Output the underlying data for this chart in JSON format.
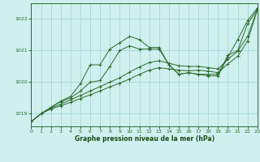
{
  "title": "Graphe pression niveau de la mer (hPa)",
  "background_color": "#cff0ee",
  "grid_color": "#aadada",
  "line_color": "#2d6a2d",
  "marker_color": "#2d6a2d",
  "xlabel_color": "#1a4a1a",
  "ylim": [
    1018.6,
    1022.5
  ],
  "xlim": [
    0,
    23
  ],
  "yticks": [
    1019,
    1020,
    1021,
    1022
  ],
  "xticks": [
    0,
    1,
    2,
    3,
    4,
    5,
    6,
    7,
    8,
    9,
    10,
    11,
    12,
    13,
    14,
    15,
    16,
    17,
    18,
    19,
    20,
    21,
    22,
    23
  ],
  "s1": [
    1018.75,
    1019.0,
    1019.2,
    1019.4,
    1019.55,
    1019.95,
    1020.55,
    1020.55,
    1021.05,
    1021.25,
    1021.45,
    1021.35,
    1021.1,
    1021.1,
    1020.55,
    1020.25,
    1020.3,
    1020.25,
    1020.2,
    1020.2,
    1020.8,
    1021.35,
    1021.95,
    1022.35
  ],
  "s2": [
    1018.75,
    1019.0,
    1019.2,
    1019.38,
    1019.5,
    1019.72,
    1020.0,
    1020.05,
    1020.5,
    1021.0,
    1021.15,
    1021.05,
    1021.05,
    1021.05,
    1020.55,
    1020.25,
    1020.3,
    1020.25,
    1020.25,
    1020.25,
    1020.85,
    1021.0,
    1021.85,
    1022.3
  ],
  "s3": [
    1018.75,
    1019.0,
    1019.18,
    1019.3,
    1019.44,
    1019.58,
    1019.72,
    1019.86,
    1020.0,
    1020.14,
    1020.32,
    1020.48,
    1020.62,
    1020.68,
    1020.6,
    1020.52,
    1020.5,
    1020.5,
    1020.46,
    1020.42,
    1020.72,
    1020.98,
    1021.45,
    1022.3
  ],
  "s4": [
    1018.75,
    1019.0,
    1019.15,
    1019.25,
    1019.36,
    1019.48,
    1019.6,
    1019.72,
    1019.85,
    1019.97,
    1020.1,
    1020.25,
    1020.38,
    1020.46,
    1020.42,
    1020.38,
    1020.36,
    1020.38,
    1020.35,
    1020.3,
    1020.58,
    1020.82,
    1021.3,
    1022.3
  ]
}
